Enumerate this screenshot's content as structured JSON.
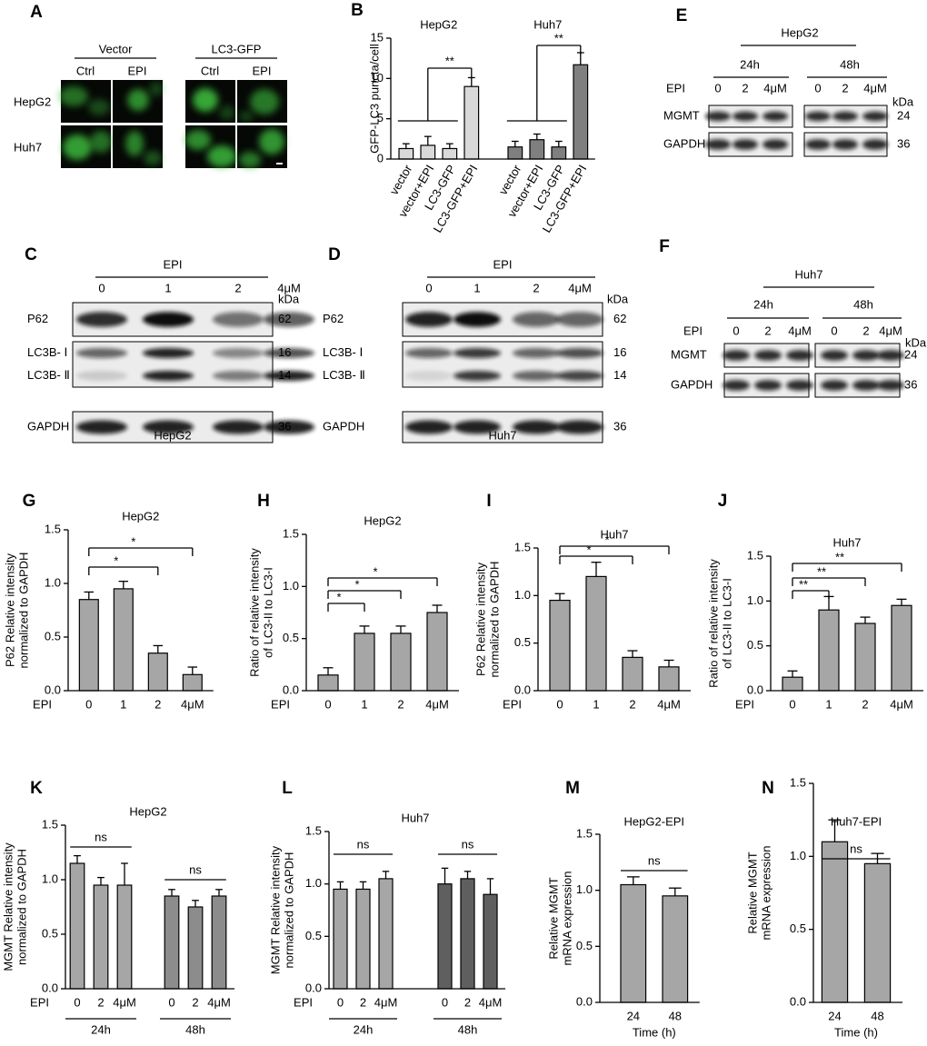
{
  "micrographs": {
    "panel": "A",
    "groups": [
      "Vector",
      "LC3-GFP"
    ],
    "columns": [
      "Ctrl",
      "EPI",
      "Ctrl",
      "EPI"
    ],
    "rows": [
      "HepG2",
      "Huh7"
    ]
  },
  "blots": [
    {
      "panel": "C",
      "treatment": "EPI",
      "lanes": [
        "0",
        "1",
        "2",
        "4μM"
      ],
      "unit": "kDa",
      "caption": "HepG2",
      "rows": [
        {
          "labels": [
            "P62"
          ],
          "sizes": [
            "62"
          ]
        },
        {
          "labels": [
            "LC3B- Ⅰ",
            "LC3B- Ⅱ"
          ],
          "sizes": [
            "16",
            "14"
          ]
        },
        {
          "labels": [
            "GAPDH"
          ],
          "sizes": [
            "36"
          ]
        }
      ]
    },
    {
      "panel": "D",
      "treatment": "EPI",
      "lanes": [
        "0",
        "1",
        "2",
        "4μM"
      ],
      "unit": "kDa",
      "caption": "Huh7",
      "rows": [
        {
          "labels": [
            "P62"
          ],
          "sizes": [
            "62"
          ]
        },
        {
          "labels": [
            "LC3B- Ⅰ",
            "LC3B- Ⅱ"
          ],
          "sizes": [
            "16",
            "14"
          ]
        },
        {
          "labels": [
            "GAPDH"
          ],
          "sizes": [
            "36"
          ]
        }
      ]
    },
    {
      "panel": "E",
      "title": "HepG2",
      "times": [
        "24h",
        "48h"
      ],
      "treatment": "EPI",
      "lanes": [
        "0",
        "2",
        "4μM",
        "0",
        "2",
        "4μM"
      ],
      "unit": "kDa",
      "rows": [
        {
          "labels": [
            "MGMT"
          ],
          "sizes": [
            "24"
          ]
        },
        {
          "labels": [
            "GAPDH"
          ],
          "sizes": [
            "36"
          ]
        }
      ]
    },
    {
      "panel": "F",
      "title": "Huh7",
      "times": [
        "24h",
        "48h"
      ],
      "treatment": "EPI",
      "lanes": [
        "0",
        "2",
        "4μM",
        "0",
        "2",
        "4μM"
      ],
      "unit": "kDa",
      "rows": [
        {
          "labels": [
            "MGMT"
          ],
          "sizes": [
            "24"
          ]
        },
        {
          "labels": [
            "GAPDH"
          ],
          "sizes": [
            "36"
          ]
        }
      ]
    }
  ],
  "chart_data": [
    {
      "type": "bar",
      "panel": "B",
      "ylabel": [
        "GFP-LC3 puncta/cell"
      ],
      "ylim": [
        0,
        15
      ],
      "yticks": [
        0,
        5,
        10,
        15
      ],
      "groups": [
        {
          "title": "HepG2",
          "color": "#d9d9d9",
          "categories": [
            "vector",
            "vector+EPI",
            "LC3-GFP",
            "LC3-GFP+EPI"
          ],
          "values": [
            1.3,
            1.7,
            1.3,
            9.0
          ],
          "errors": [
            0.6,
            1.1,
            0.6,
            1.1
          ]
        },
        {
          "title": "Huh7",
          "color": "#7f7f7f",
          "categories": [
            "vector",
            "vector+EPI",
            "LC3-GFP",
            "LC3-GFP+EPI"
          ],
          "values": [
            1.5,
            2.4,
            1.5,
            11.7
          ],
          "errors": [
            0.7,
            0.7,
            0.7,
            1.5
          ]
        }
      ],
      "significance": [
        "**",
        "**"
      ]
    },
    {
      "type": "bar",
      "panel": "G",
      "title": "HepG2",
      "ylabel": [
        "P62 Relative intensity",
        "normalized to GAPDH"
      ],
      "x_prefix": "EPI",
      "ylim": [
        0,
        1.5
      ],
      "yticks": [
        {
          "value": 0,
          "label": "0.0"
        },
        {
          "value": 0.5,
          "label": "0.5"
        },
        {
          "value": 1,
          "label": "1.0"
        },
        {
          "value": 1.5,
          "label": "1.5"
        }
      ],
      "groups": [
        {
          "color": "#a6a6a6",
          "categories": [
            "0",
            "1",
            "2",
            "4μM"
          ],
          "values": [
            0.85,
            0.95,
            0.35,
            0.15
          ],
          "errors": [
            0.07,
            0.07,
            0.07,
            0.07
          ]
        }
      ],
      "significance": [
        "*",
        "*"
      ]
    },
    {
      "type": "bar",
      "panel": "H",
      "title": "HepG2",
      "ylabel": [
        "Ratio of relative intensity",
        "of LC3-II to LC3-I"
      ],
      "x_prefix": "EPI",
      "ylim": [
        0,
        1.5
      ],
      "yticks": [
        {
          "value": 0,
          "label": "0.0"
        },
        {
          "value": 0.5,
          "label": "0.5"
        },
        {
          "value": 1,
          "label": "1.0"
        },
        {
          "value": 1.5,
          "label": "1.5"
        }
      ],
      "groups": [
        {
          "color": "#a6a6a6",
          "categories": [
            "0",
            "1",
            "2",
            "4μM"
          ],
          "values": [
            0.15,
            0.55,
            0.55,
            0.75
          ],
          "errors": [
            0.07,
            0.07,
            0.07,
            0.07
          ]
        }
      ],
      "significance": [
        "*",
        "*",
        "*"
      ]
    },
    {
      "type": "bar",
      "panel": "I",
      "title": "Huh7",
      "ylabel": [
        "P62 Relative intensity",
        "normalized to GAPDH"
      ],
      "x_prefix": "EPI",
      "ylim": [
        0,
        1.5
      ],
      "yticks": [
        {
          "value": 0,
          "label": "0.0"
        },
        {
          "value": 0.5,
          "label": "0.5"
        },
        {
          "value": 1,
          "label": "1.0"
        },
        {
          "value": 1.5,
          "label": "1.5"
        }
      ],
      "groups": [
        {
          "color": "#a6a6a6",
          "categories": [
            "0",
            "1",
            "2",
            "4μM"
          ],
          "values": [
            0.95,
            1.2,
            0.35,
            0.25
          ],
          "errors": [
            0.07,
            0.15,
            0.07,
            0.07
          ]
        }
      ],
      "significance": [
        "*",
        "*"
      ]
    },
    {
      "type": "bar",
      "panel": "J",
      "title": "Huh7",
      "ylabel": [
        "Ratio of relative intensity",
        "of LC3-II to LC3-I"
      ],
      "x_prefix": "EPI",
      "ylim": [
        0,
        1.5
      ],
      "yticks": [
        {
          "value": 0,
          "label": "0.0"
        },
        {
          "value": 0.5,
          "label": "0.5"
        },
        {
          "value": 1,
          "label": "1.0"
        },
        {
          "value": 1.5,
          "label": "1.5"
        }
      ],
      "groups": [
        {
          "color": "#a6a6a6",
          "categories": [
            "0",
            "1",
            "2",
            "4μM"
          ],
          "values": [
            0.15,
            0.9,
            0.75,
            0.95
          ],
          "errors": [
            0.07,
            0.15,
            0.07,
            0.07
          ]
        }
      ],
      "significance": [
        "**",
        "**",
        "**"
      ]
    },
    {
      "type": "bar",
      "panel": "K",
      "title": "HepG2",
      "ylabel": [
        "MGMT Relative intensity",
        "normalized to GAPDH"
      ],
      "x_prefix": "EPI",
      "ylim": [
        0,
        1.5
      ],
      "yticks": [
        {
          "value": 0,
          "label": "0.0"
        },
        {
          "value": 0.5,
          "label": "0.5"
        },
        {
          "value": 1,
          "label": "1.0"
        },
        {
          "value": 1.5,
          "label": "1.5"
        }
      ],
      "groups": [
        {
          "label": "24h",
          "color": "#a6a6a6",
          "categories": [
            "0",
            "2",
            "4μM"
          ],
          "values": [
            1.15,
            0.95,
            0.95
          ],
          "errors": [
            0.07,
            0.07,
            0.2
          ]
        },
        {
          "label": "48h",
          "color": "#8c8c8c",
          "categories": [
            "0",
            "2",
            "4μM"
          ],
          "values": [
            0.85,
            0.75,
            0.85
          ],
          "errors": [
            0.06,
            0.06,
            0.06
          ]
        }
      ],
      "significance": [
        "ns",
        "ns"
      ]
    },
    {
      "type": "bar",
      "panel": "L",
      "title": "Huh7",
      "ylabel": [
        "MGMT Relative intensity",
        "normalized to GAPDH"
      ],
      "x_prefix": "EPI",
      "ylim": [
        0,
        1.5
      ],
      "yticks": [
        {
          "value": 0,
          "label": "0.0"
        },
        {
          "value": 0.5,
          "label": "0.5"
        },
        {
          "value": 1,
          "label": "1.0"
        },
        {
          "value": 1.5,
          "label": "1.5"
        }
      ],
      "groups": [
        {
          "label": "24h",
          "color": "#a6a6a6",
          "categories": [
            "0",
            "2",
            "4μM"
          ],
          "values": [
            0.95,
            0.95,
            1.05
          ],
          "errors": [
            0.07,
            0.07,
            0.07
          ]
        },
        {
          "label": "48h",
          "color": "#5f5f5f",
          "categories": [
            "0",
            "2",
            "4μM"
          ],
          "values": [
            1.0,
            1.05,
            0.9
          ],
          "errors": [
            0.15,
            0.07,
            0.15
          ]
        }
      ],
      "significance": [
        "ns",
        "ns"
      ]
    },
    {
      "type": "bar",
      "panel": "M",
      "title": "HepG2-EPI",
      "ylabel": [
        "Relative MGMT",
        "mRNA expression"
      ],
      "xlabel": "Time (h)",
      "ylim": [
        0,
        1.5
      ],
      "yticks": [
        {
          "value": 0,
          "label": "0.0"
        },
        {
          "value": 0.5,
          "label": "0.5"
        },
        {
          "value": 1,
          "label": "1.0"
        },
        {
          "value": 1.5,
          "label": "1.5"
        }
      ],
      "groups": [
        {
          "color": "#a6a6a6",
          "categories": [
            "24",
            "48"
          ],
          "values": [
            1.05,
            0.95
          ],
          "errors": [
            0.07,
            0.07
          ]
        }
      ],
      "significance": [
        "ns"
      ]
    },
    {
      "type": "bar",
      "panel": "N",
      "title": "Huh7-EPI",
      "ylabel": [
        "Relative MGMT",
        "mRNA expression"
      ],
      "xlabel": "Time (h)",
      "ylim": [
        0,
        1.5
      ],
      "yticks": [
        {
          "value": 0,
          "label": "0.0"
        },
        {
          "value": 0.5,
          "label": "0.5"
        },
        {
          "value": 1,
          "label": "1.0"
        },
        {
          "value": 1.5,
          "label": "1.5"
        }
      ],
      "groups": [
        {
          "color": "#a6a6a6",
          "categories": [
            "24",
            "48"
          ],
          "values": [
            1.1,
            0.95
          ],
          "errors": [
            0.15,
            0.07
          ]
        }
      ],
      "significance": [
        "ns"
      ]
    }
  ]
}
